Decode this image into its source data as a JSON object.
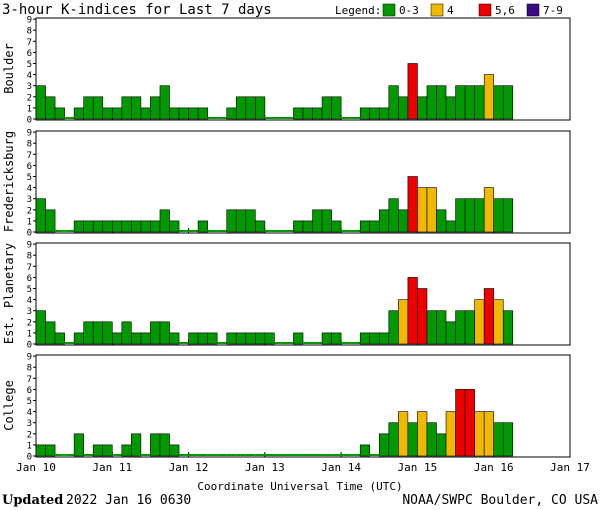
{
  "chart_data": {
    "type": "bar",
    "title": "3-hour K-indices for Last 7 days",
    "legend": {
      "label": "Legend:",
      "placement": "top-right",
      "items": [
        {
          "label": "0-3",
          "color": "#009900"
        },
        {
          "label": "4",
          "color": "#f0b800"
        },
        {
          "label": "5,6",
          "color": "#ee0000"
        },
        {
          "label": "7-9",
          "color": "#3d0a8a"
        }
      ]
    },
    "xlabel": "Coordinate Universal Time (UTC)",
    "x_ticks": [
      "Jan 10",
      "Jan 11",
      "Jan 12",
      "Jan 13",
      "Jan 14",
      "Jan 15",
      "Jan 16",
      "Jan 17"
    ],
    "ylim": [
      0,
      9
    ],
    "y_ticks": [
      0,
      1,
      2,
      3,
      4,
      5,
      6,
      7,
      8,
      9
    ],
    "series": [
      {
        "name": "Boulder",
        "values": [
          3,
          2,
          1,
          0,
          1,
          2,
          2,
          1,
          1,
          2,
          2,
          1,
          2,
          3,
          1,
          1,
          1,
          1,
          0,
          0,
          1,
          2,
          2,
          2,
          0,
          0,
          0,
          1,
          1,
          1,
          2,
          2,
          0,
          0,
          1,
          1,
          1,
          3,
          2,
          5,
          2,
          3,
          3,
          2,
          3,
          3,
          3,
          4,
          3,
          3,
          null,
          null,
          null,
          null,
          null,
          null
        ]
      },
      {
        "name": "Fredericksburg",
        "values": [
          3,
          2,
          0,
          0,
          1,
          1,
          1,
          1,
          1,
          1,
          1,
          1,
          1,
          2,
          1,
          0,
          0,
          1,
          0,
          0,
          2,
          2,
          2,
          1,
          0,
          0,
          0,
          1,
          1,
          2,
          2,
          1,
          0,
          0,
          1,
          1,
          2,
          3,
          2,
          5,
          4,
          4,
          2,
          1,
          3,
          3,
          3,
          4,
          3,
          3,
          null,
          null,
          null,
          null,
          null,
          null
        ]
      },
      {
        "name": "Est. Planetary",
        "values": [
          3,
          2,
          1,
          0,
          1,
          2,
          2,
          2,
          1,
          2,
          1,
          1,
          2,
          2,
          1,
          0,
          1,
          1,
          1,
          0,
          1,
          1,
          1,
          1,
          1,
          0,
          0,
          1,
          0,
          0,
          1,
          1,
          0,
          0,
          1,
          1,
          1,
          3,
          4,
          6,
          5,
          3,
          3,
          2,
          3,
          3,
          4,
          5,
          4,
          3,
          null,
          null,
          null,
          null,
          null,
          null
        ]
      },
      {
        "name": "College",
        "values": [
          1,
          1,
          0,
          0,
          2,
          0,
          1,
          1,
          0,
          1,
          2,
          0,
          2,
          2,
          1,
          0,
          0,
          0,
          0,
          0,
          0,
          0,
          0,
          0,
          0,
          0,
          0,
          0,
          0,
          0,
          0,
          0,
          0,
          0,
          1,
          0,
          2,
          3,
          4,
          3,
          4,
          3,
          2,
          4,
          6,
          6,
          4,
          4,
          3,
          3,
          null,
          null,
          null,
          null,
          null,
          null
        ]
      }
    ]
  },
  "footer": {
    "updated_label": "Updated",
    "updated_value": "2022 Jan 16 0630",
    "source": "NOAA/SWPC Boulder, CO USA"
  }
}
